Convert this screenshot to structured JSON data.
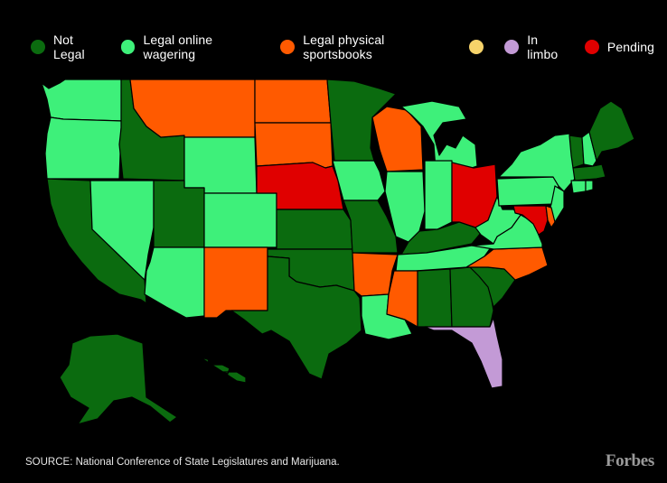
{
  "legend": [
    {
      "label": "Not Legal",
      "color": "#0b6b0f"
    },
    {
      "label": "Legal online wagering",
      "color": "#3ef07a"
    },
    {
      "label": "Legal physical sportsbooks",
      "color": "#ff5a00"
    },
    {
      "label": "",
      "color": "#f6d36a"
    },
    {
      "label": "In limbo",
      "color": "#c39ad6"
    },
    {
      "label": "Pending",
      "color": "#e00000"
    }
  ],
  "states": {
    "WA": "online",
    "OR": "online",
    "CA": "not_legal",
    "NV": "online",
    "ID": "not_legal",
    "MT": "physical",
    "WY": "online",
    "UT": "not_legal",
    "AZ": "online",
    "CO": "online",
    "NM": "physical",
    "ND": "physical",
    "SD": "physical",
    "NE": "pending",
    "KS": "not_legal",
    "OK": "not_legal",
    "TX": "not_legal",
    "MN": "not_legal",
    "IA": "online",
    "MO": "not_legal",
    "AR": "physical",
    "LA": "online",
    "WI": "physical",
    "IL": "online",
    "MI": "online",
    "IN": "online",
    "OH": "pending",
    "KY": "not_legal",
    "TN": "online",
    "MS": "physical",
    "AL": "not_legal",
    "GA": "not_legal",
    "FL": "limbo",
    "SC": "not_legal",
    "NC": "physical",
    "VA": "online",
    "WV": "online",
    "PA": "online",
    "NY": "online",
    "NJ": "online",
    "MD": "pending",
    "DE": "physical",
    "VT": "not_legal",
    "NH": "online",
    "ME": "not_legal",
    "MA": "not_legal",
    "CT": "online",
    "RI": "online",
    "AK": "not_legal",
    "HI": "not_legal"
  },
  "status_colors": {
    "not_legal": "#0b6b0f",
    "online": "#3ef07a",
    "physical": "#ff5a00",
    "pending": "#e00000",
    "limbo": "#c39ad6"
  },
  "source": "SOURCE: National Conference of State Legislatures and Marijuana.",
  "brand": "Forbes"
}
